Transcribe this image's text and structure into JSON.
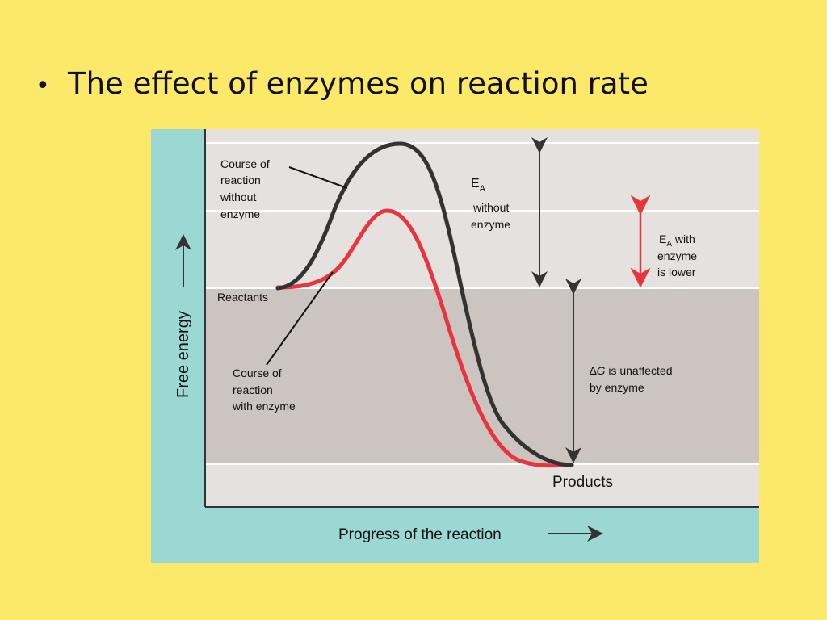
{
  "slide": {
    "bullet": "•",
    "title": "The effect of enzymes on reaction rate"
  },
  "diagram": {
    "y_axis_label": "Free energy",
    "x_axis_label": "Progress of the reaction",
    "label_course_without": [
      "Course of",
      "reaction",
      "without",
      "enzyme"
    ],
    "label_course_with": [
      "Course of",
      "reaction",
      "with enzyme"
    ],
    "label_reactants": "Reactants",
    "label_products": "Products",
    "ea_without": {
      "symbol": "E",
      "subscript": "A",
      "lines": [
        "without",
        "enzyme"
      ]
    },
    "ea_with": {
      "symbol": "E",
      "subscript": "A",
      "suffix": " with",
      "lines": [
        "enzyme",
        "is lower"
      ]
    },
    "delta_g": {
      "symbol": "∆",
      "italic": "G",
      "suffix": " is unaffected",
      "line2": "by enzyme"
    }
  },
  "colors": {
    "background": "#fce96a",
    "frame": "#9bd8d4",
    "light_band": "#e4e1df",
    "dark_band": "#ccc4c1",
    "curve_without_enzyme": "#333333",
    "curve_with_enzyme": "#e8343c",
    "arrow_ea_with": "#e8343c"
  }
}
